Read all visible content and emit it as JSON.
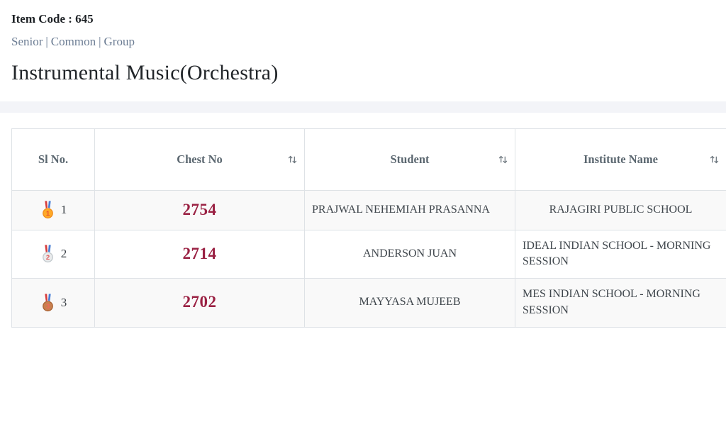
{
  "header": {
    "item_code": "Item Code : 645",
    "categories": [
      "Senior",
      "Common",
      "Group"
    ],
    "separator": "|",
    "title": "Instrumental Music(Orchestra)"
  },
  "table": {
    "columns": [
      {
        "key": "sl_no",
        "label": "Sl No.",
        "sortable": false
      },
      {
        "key": "chest_no",
        "label": "Chest No",
        "sortable": true
      },
      {
        "key": "student",
        "label": "Student",
        "sortable": true
      },
      {
        "key": "institute",
        "label": "Institute Name",
        "sortable": true
      }
    ],
    "rows": [
      {
        "rank": "1",
        "medal": "gold",
        "chest_no": "2754",
        "student": "PRAJWAL NEHEMIAH PRASANNA",
        "institute": "RAJAGIRI PUBLIC SCHOOL"
      },
      {
        "rank": "2",
        "medal": "silver",
        "chest_no": "2714",
        "student": "ANDERSON JUAN",
        "institute": "IDEAL INDIAN SCHOOL - MORNING SESSION"
      },
      {
        "rank": "3",
        "medal": "bronze",
        "chest_no": "2702",
        "student": "MAYYASA MUJEEB",
        "institute": "MES INDIAN SCHOOL - MORNING SESSION"
      }
    ]
  },
  "colors": {
    "chest_no_text": "#9a2143",
    "link_text": "#6b7c93",
    "header_text": "#5b6770",
    "body_text": "#3f464c",
    "row_stripe": "#f9f9f9",
    "divider_band": "#f3f4f8",
    "table_border": "#dee2e6",
    "medal_gold_body": "#ffa927",
    "medal_gold_rim": "#ef8d1d",
    "medal_silver_body": "#e9ebec",
    "medal_silver_rim": "#c3c9cd",
    "medal_bronze_body": "#c9804f",
    "medal_bronze_rim": "#a96335",
    "ribbon_red": "#d63c3c",
    "ribbon_blue": "#4a7fd4",
    "medal_number_gold": "#e8542f",
    "medal_number_silver": "#e25b5b",
    "medal_number_bronze": "#ef6a5a"
  }
}
